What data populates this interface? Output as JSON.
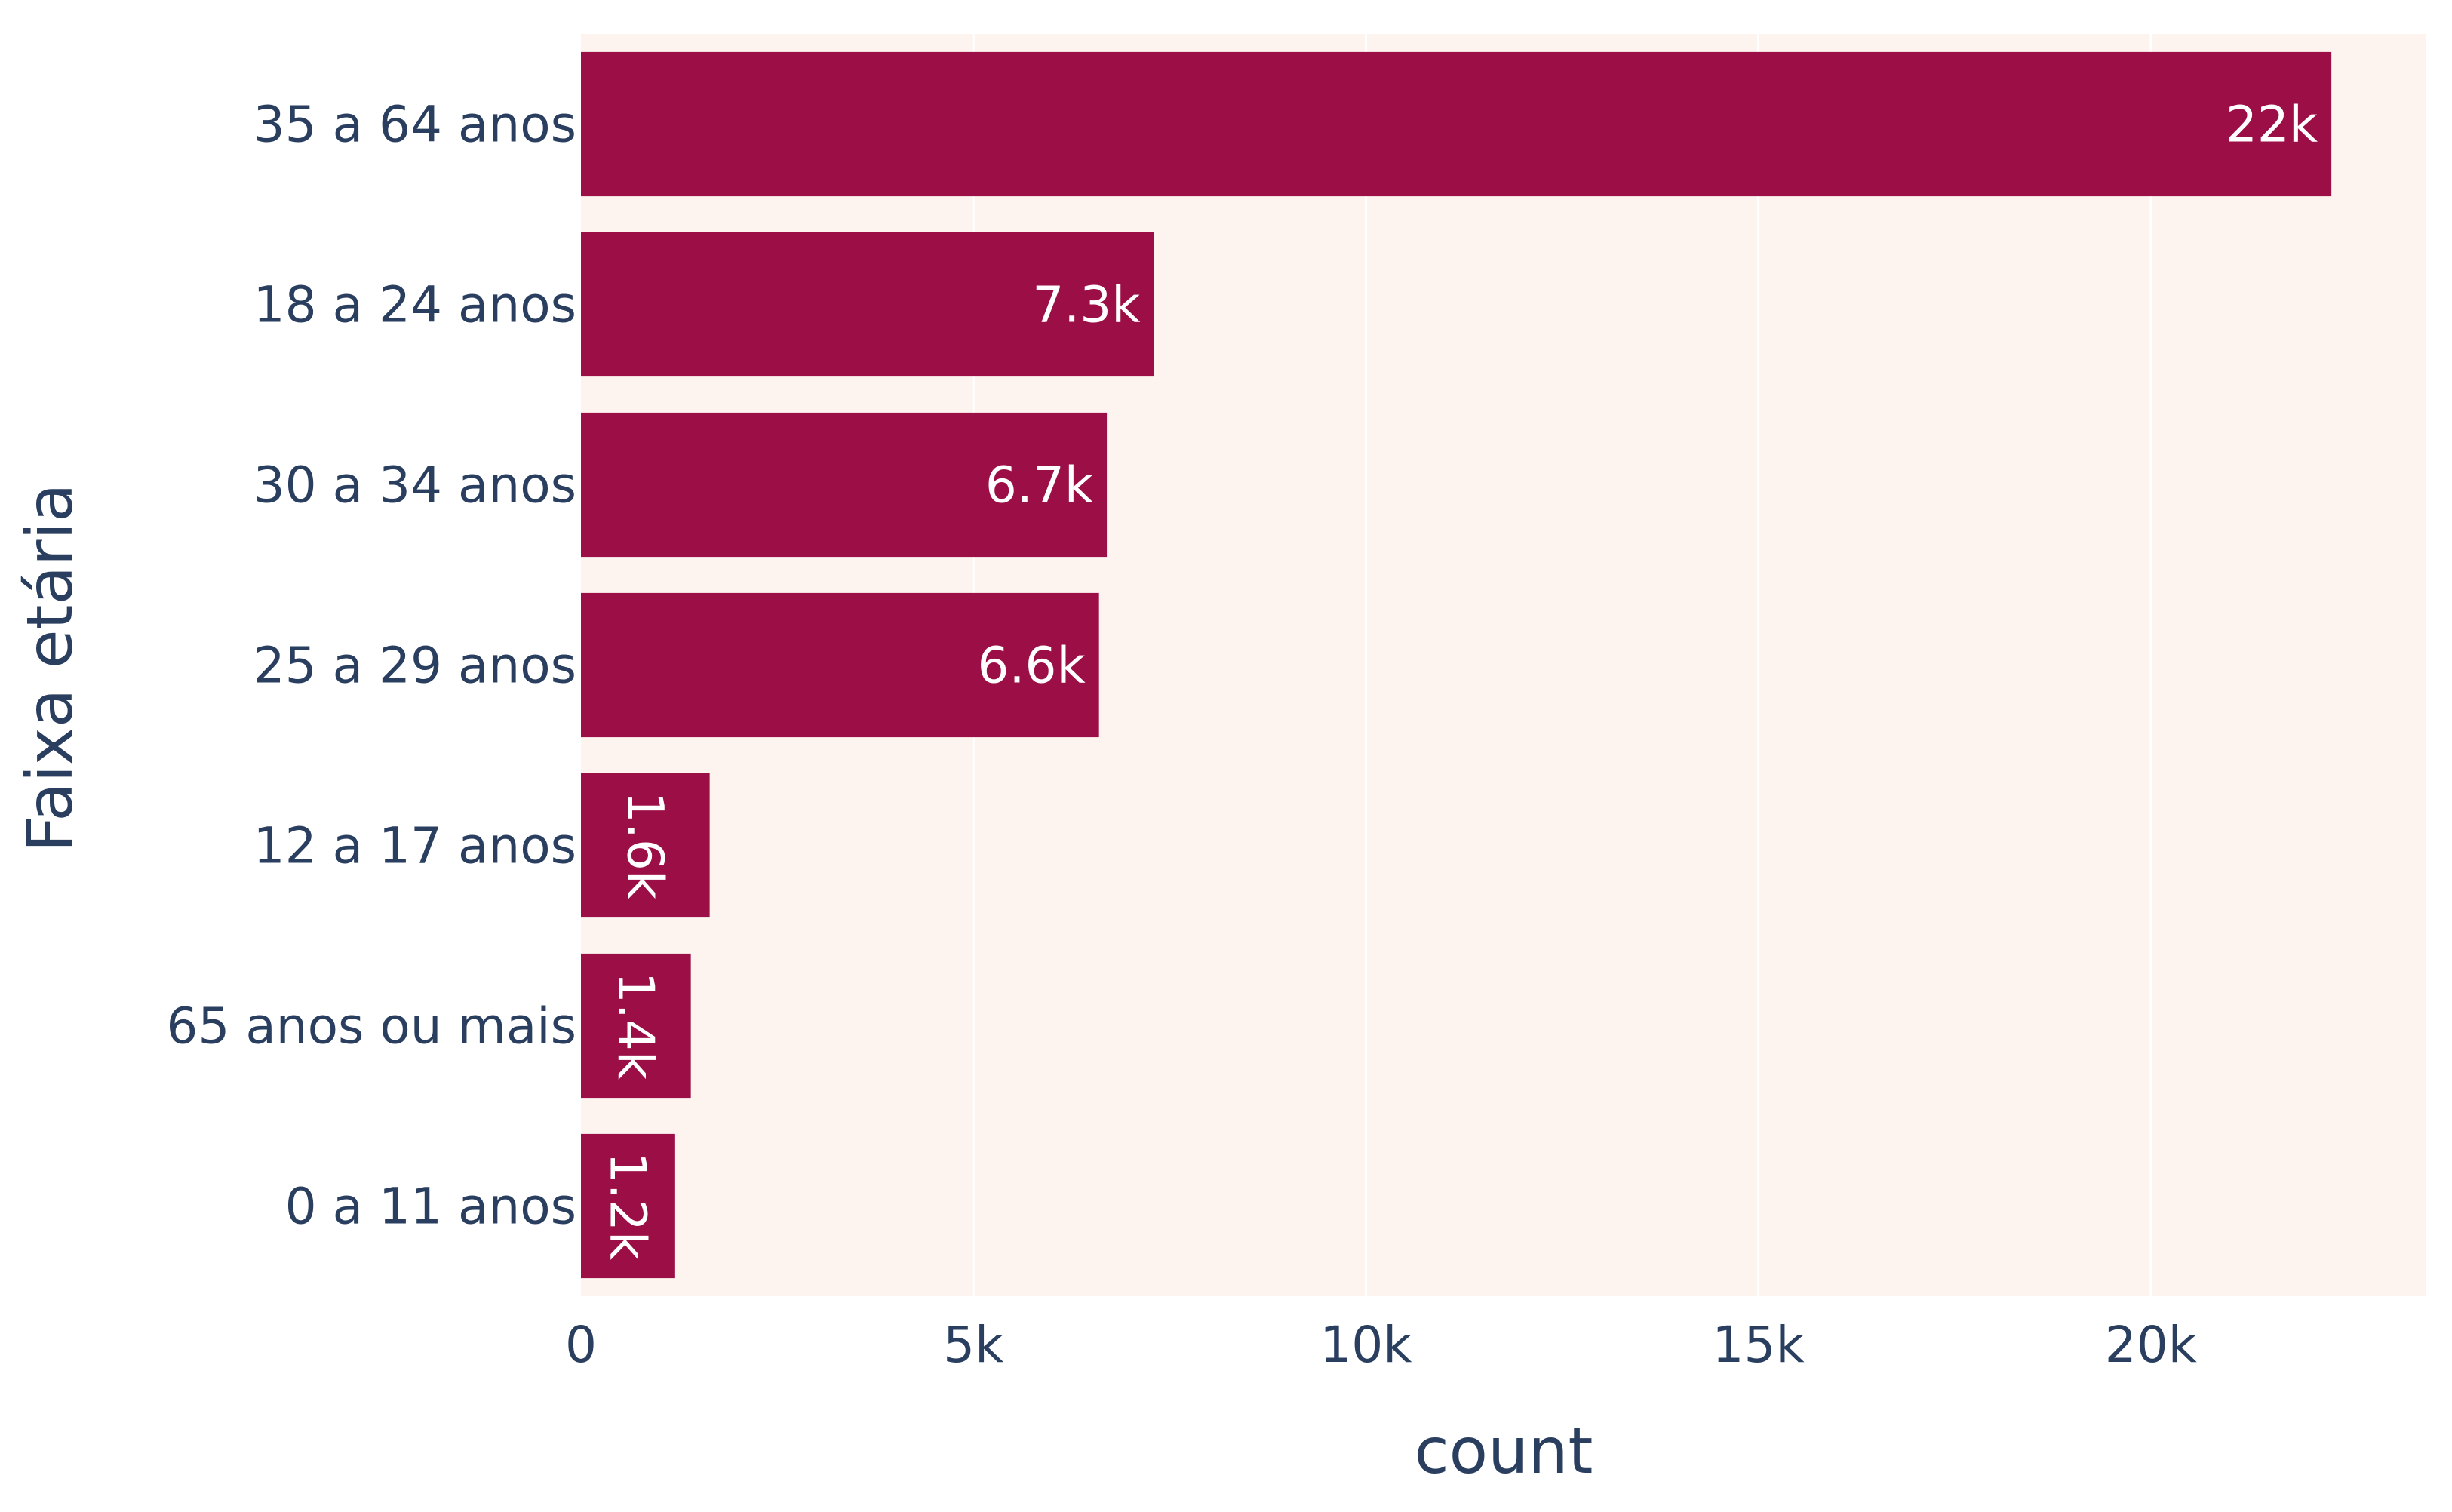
{
  "chart_data": {
    "type": "bar",
    "orientation": "horizontal",
    "title": "",
    "xlabel": "count",
    "ylabel": "Faixa etária",
    "xlim": [
      0,
      23500
    ],
    "x_ticks": [
      0,
      5000,
      10000,
      15000,
      20000
    ],
    "x_tick_labels": [
      "0",
      "5k",
      "10k",
      "15k",
      "20k"
    ],
    "grid": "vertical",
    "legend": "none",
    "categories": [
      "35 a 64 anos",
      "18 a 24 anos",
      "30 a 34 anos",
      "25 a 29 anos",
      "12 a 17 anos",
      "65 anos ou mais",
      "0 a 11 anos"
    ],
    "values": [
      22300,
      7300,
      6700,
      6600,
      1640,
      1400,
      1200
    ],
    "data_labels": [
      "22k",
      "7.3k",
      "6.7k",
      "6.6k",
      "1.6k",
      "1.4k",
      "1.2k"
    ],
    "colors": {
      "bar": "#9c0f46",
      "plot_bg": "#fdf3ef",
      "grid": "#ffffff",
      "text": "#2a3f5f"
    }
  }
}
